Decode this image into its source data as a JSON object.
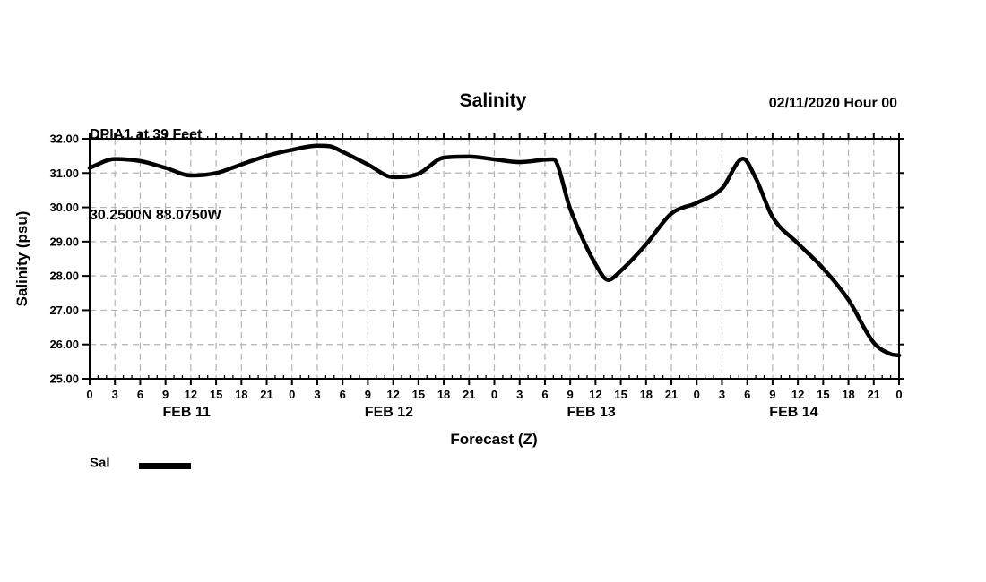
{
  "header": {
    "station_line1": "DPIA1 at 39 Feet",
    "station_line2": "30.2500N 88.0750W",
    "title": "Salinity",
    "run_info": "02/11/2020 Hour 00"
  },
  "axes": {
    "y_label": "Salinity (psu)",
    "x_label": "Forecast (Z)",
    "y_ticks": [
      {
        "value": 32,
        "label": "32.00"
      },
      {
        "value": 31,
        "label": "31.00"
      },
      {
        "value": 30,
        "label": "30.00"
      },
      {
        "value": 29,
        "label": "29.00"
      },
      {
        "value": 28,
        "label": "28.00"
      },
      {
        "value": 27,
        "label": "27.00"
      },
      {
        "value": 26,
        "label": "26.00"
      },
      {
        "value": 25,
        "label": "25.00"
      }
    ],
    "x_major_ticks_hours": [
      0,
      3,
      6,
      9,
      12,
      15,
      18,
      21,
      24,
      27,
      30,
      33,
      36,
      39,
      42,
      45,
      48,
      51,
      54,
      57,
      60,
      63,
      66,
      69,
      72,
      75,
      78,
      81,
      84,
      87,
      90,
      93,
      96
    ],
    "x_tick_labels": [
      "0",
      "3",
      "6",
      "9",
      "12",
      "15",
      "18",
      "21",
      "0",
      "3",
      "6",
      "9",
      "12",
      "15",
      "18",
      "21",
      "0",
      "3",
      "6",
      "9",
      "12",
      "15",
      "18",
      "21",
      "0",
      "3",
      "6",
      "9",
      "12",
      "15",
      "18",
      "21",
      "0"
    ],
    "x_minor_step_hours": 1,
    "day_labels": [
      {
        "label": "FEB 11",
        "center_hour": 11.5
      },
      {
        "label": "FEB 12",
        "center_hour": 35.5
      },
      {
        "label": "FEB 13",
        "center_hour": 59.5
      },
      {
        "label": "FEB 14",
        "center_hour": 83.5
      }
    ]
  },
  "legend": {
    "label": "Sal",
    "swatch_color": "#000000"
  },
  "colors": {
    "line": "#000000",
    "grid": "#b3b3b3",
    "axis": "#000000",
    "background": "#ffffff"
  },
  "chart_data": {
    "type": "line",
    "title": "Salinity",
    "xlabel": "Forecast (Z)",
    "ylabel": "Salinity (psu)",
    "x_unit": "forecast hour after 02/11/2020 00Z",
    "xlim": [
      0,
      96
    ],
    "ylim": [
      25,
      32
    ],
    "grid": true,
    "legend_position": "bottom-left",
    "x_day_spans": [
      {
        "day": "FEB 11",
        "hours": [
          0,
          24
        ]
      },
      {
        "day": "FEB 12",
        "hours": [
          24,
          48
        ]
      },
      {
        "day": "FEB 13",
        "hours": [
          48,
          72
        ]
      },
      {
        "day": "FEB 14",
        "hours": [
          72,
          96
        ]
      }
    ],
    "series": [
      {
        "name": "Sal",
        "x": [
          0,
          3,
          6,
          9,
          12,
          15,
          18,
          21,
          24,
          27,
          28.5,
          30,
          33,
          36,
          39,
          42,
          45,
          48,
          51,
          54,
          55,
          57,
          60,
          61.5,
          63,
          66,
          69,
          72,
          75,
          77.5,
          79,
          81,
          84,
          87,
          90,
          93,
          95,
          96
        ],
        "values": [
          31.15,
          31.41,
          31.35,
          31.15,
          30.93,
          31.0,
          31.25,
          31.5,
          31.68,
          31.8,
          31.78,
          31.62,
          31.25,
          30.88,
          30.98,
          31.45,
          31.48,
          31.4,
          31.32,
          31.39,
          31.4,
          29.95,
          28.34,
          27.88,
          28.15,
          28.92,
          29.82,
          30.13,
          30.55,
          31.42,
          30.85,
          29.72,
          28.95,
          28.22,
          27.3,
          26.05,
          25.72,
          25.68
        ]
      }
    ]
  }
}
